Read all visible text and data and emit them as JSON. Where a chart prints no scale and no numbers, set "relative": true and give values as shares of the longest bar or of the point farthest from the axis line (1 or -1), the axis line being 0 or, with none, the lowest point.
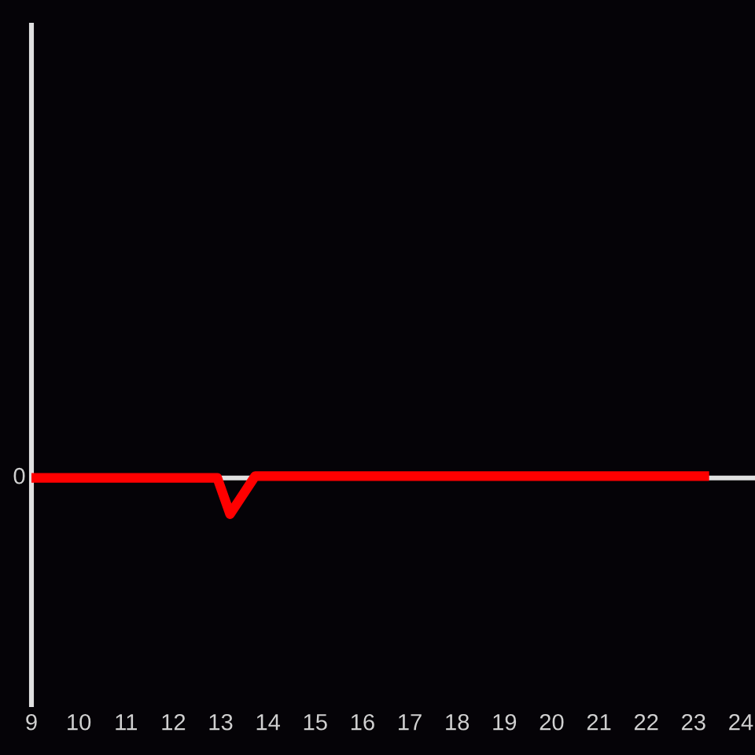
{
  "chart_data": {
    "type": "line",
    "x": [
      9,
      12.93,
      13.2,
      13.73,
      23.33
    ],
    "values": [
      0,
      0,
      -1,
      0.05,
      0.05
    ],
    "color": "#ff0000",
    "relative": true,
    "xlim": [
      9,
      24.3
    ],
    "xticks": [
      9,
      10,
      11,
      12,
      13,
      14,
      15,
      16,
      17,
      18,
      19,
      20,
      21,
      22,
      23,
      24
    ],
    "ref_lines": [
      {
        "axis": "y",
        "value": 0,
        "label": "0",
        "color": "#e0e0e0"
      }
    ],
    "marker": "none",
    "line_style": "solid"
  }
}
